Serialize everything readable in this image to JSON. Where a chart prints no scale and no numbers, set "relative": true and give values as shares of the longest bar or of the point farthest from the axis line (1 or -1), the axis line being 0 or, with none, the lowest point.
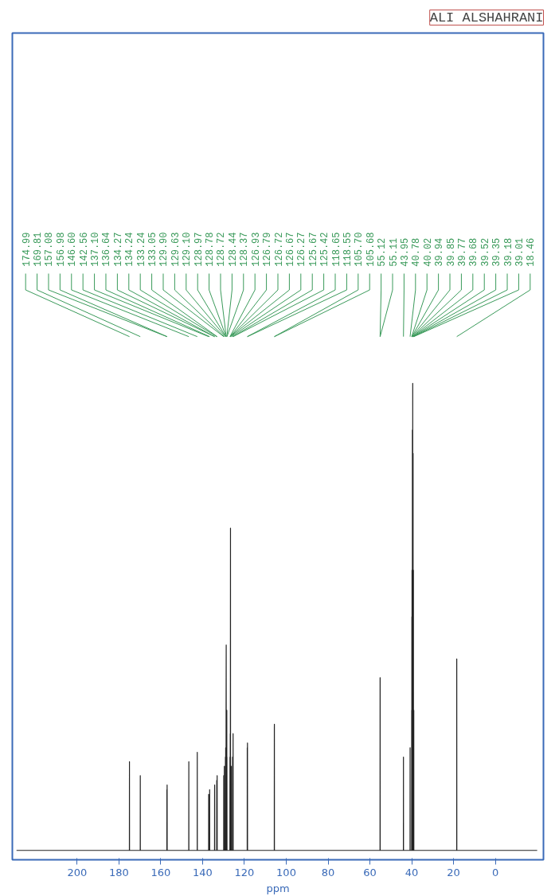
{
  "chart_data": {
    "type": "line",
    "relative": true,
    "color": "#222222",
    "tick_labels": "x",
    "x": [
      -20,
      18.43,
      18.46,
      18.49,
      38.98,
      39.01,
      39.04,
      39.15,
      39.18,
      39.21,
      39.32,
      39.35,
      39.38,
      39.49,
      39.52,
      39.55,
      39.65,
      39.68,
      39.71,
      39.74,
      39.77,
      39.8,
      39.82,
      39.85,
      39.88,
      39.91,
      39.94,
      39.97,
      39.99,
      40.02,
      40.05,
      40.75,
      40.78,
      40.81,
      43.92,
      43.95,
      43.98,
      55.08,
      55.11,
      55.12,
      55.15,
      105.65,
      105.68,
      105.7,
      105.73,
      118.52,
      118.55,
      118.58,
      118.62,
      118.65,
      118.68,
      125.39,
      125.42,
      125.45,
      125.64,
      125.67,
      125.7,
      126.24,
      126.27,
      126.3,
      126.64,
      126.67,
      126.72,
      126.75,
      126.76,
      126.79,
      126.82,
      126.9,
      126.93,
      126.96,
      128.34,
      128.37,
      128.4,
      128.41,
      128.44,
      128.47,
      128.69,
      128.72,
      128.78,
      128.81,
      128.94,
      128.97,
      129.0,
      129.07,
      129.1,
      129.13,
      129.6,
      129.63,
      129.66,
      129.87,
      129.9,
      129.93,
      133.02,
      133.05,
      133.08,
      133.21,
      133.24,
      133.27,
      134.21,
      134.24,
      134.27,
      134.3,
      136.61,
      136.64,
      136.67,
      137.07,
      137.1,
      137.13,
      142.53,
      142.56,
      142.59,
      146.57,
      146.6,
      146.63,
      156.95,
      156.98,
      157.01,
      157.05,
      157.08,
      157.11,
      169.78,
      169.81,
      169.84,
      174.96,
      174.99,
      175.02,
      229
    ],
    "values": [
      0,
      0,
      0.41,
      0,
      0,
      0.3,
      0,
      0,
      0.6,
      0,
      0,
      0.85,
      0,
      0,
      1.0,
      0,
      0,
      0.9,
      0,
      0,
      0.5,
      0,
      0,
      0.6,
      0,
      0,
      0.5,
      0,
      0,
      0.3,
      0,
      0,
      0.22,
      0,
      0,
      0.2,
      0,
      0,
      0.37,
      0.36,
      0,
      0,
      0.27,
      0.26,
      0,
      0,
      0.23,
      0,
      0,
      0.22,
      0,
      0,
      0.25,
      0,
      0,
      0.2,
      0,
      0,
      0.18,
      0,
      0,
      0.69,
      0.3,
      0,
      0,
      0.25,
      0,
      0,
      0.2,
      0,
      0,
      0.2,
      0,
      0,
      0.3,
      0,
      0,
      0.44,
      0.3,
      0,
      0,
      0.22,
      0,
      0,
      0.2,
      0,
      0,
      0.18,
      0,
      0,
      0.16,
      0,
      0,
      0.16,
      0,
      0,
      0.15,
      0,
      0,
      0.14,
      0.13,
      0,
      0,
      0.13,
      0,
      0,
      0.12,
      0,
      0,
      0.21,
      0,
      0,
      0.19,
      0,
      0,
      0.14,
      0,
      0,
      0.13,
      0,
      0,
      0.16,
      0,
      0,
      0.19,
      0,
      0
    ],
    "xlim": [
      231,
      -23
    ],
    "xticks": [
      0,
      20,
      40,
      60,
      80,
      100,
      120,
      140,
      160,
      180,
      200
    ],
    "xlabel": "ppm",
    "title": "ALI ALSHAHRANI",
    "annotations": [
      {
        "text": "18.46",
        "x": 18.46
      },
      {
        "text": "39.01",
        "x": 39.01
      },
      {
        "text": "39.18",
        "x": 39.18
      },
      {
        "text": "39.35",
        "x": 39.35
      },
      {
        "text": "39.52",
        "x": 39.52
      },
      {
        "text": "39.68",
        "x": 39.68
      },
      {
        "text": "39.77",
        "x": 39.77
      },
      {
        "text": "39.85",
        "x": 39.85
      },
      {
        "text": "39.94",
        "x": 39.94
      },
      {
        "text": "40.02",
        "x": 40.02
      },
      {
        "text": "40.78",
        "x": 40.78
      },
      {
        "text": "43.95",
        "x": 43.95
      },
      {
        "text": "55.11",
        "x": 55.11
      },
      {
        "text": "55.12",
        "x": 55.12
      },
      {
        "text": "105.68",
        "x": 105.68
      },
      {
        "text": "105.70",
        "x": 105.7
      },
      {
        "text": "118.55",
        "x": 118.55
      },
      {
        "text": "118.65",
        "x": 118.65
      },
      {
        "text": "125.42",
        "x": 125.42
      },
      {
        "text": "125.67",
        "x": 125.67
      },
      {
        "text": "126.27",
        "x": 126.27
      },
      {
        "text": "126.67",
        "x": 126.67
      },
      {
        "text": "126.72",
        "x": 126.72
      },
      {
        "text": "126.79",
        "x": 126.79
      },
      {
        "text": "126.93",
        "x": 126.93
      },
      {
        "text": "128.37",
        "x": 128.37
      },
      {
        "text": "128.44",
        "x": 128.44
      },
      {
        "text": "128.72",
        "x": 128.72
      },
      {
        "text": "128.78",
        "x": 128.78
      },
      {
        "text": "128.97",
        "x": 128.97
      },
      {
        "text": "129.10",
        "x": 129.1
      },
      {
        "text": "129.63",
        "x": 129.63
      },
      {
        "text": "129.90",
        "x": 129.9
      },
      {
        "text": "133.05",
        "x": 133.05
      },
      {
        "text": "133.24",
        "x": 133.24
      },
      {
        "text": "134.24",
        "x": 134.24
      },
      {
        "text": "134.27",
        "x": 134.27
      },
      {
        "text": "136.64",
        "x": 136.64
      },
      {
        "text": "137.10",
        "x": 137.1
      },
      {
        "text": "142.56",
        "x": 142.56
      },
      {
        "text": "146.60",
        "x": 146.6
      },
      {
        "text": "156.98",
        "x": 156.98
      },
      {
        "text": "157.08",
        "x": 157.08
      },
      {
        "text": "169.81",
        "x": 169.81
      },
      {
        "text": "174.99",
        "x": 174.99
      }
    ]
  }
}
